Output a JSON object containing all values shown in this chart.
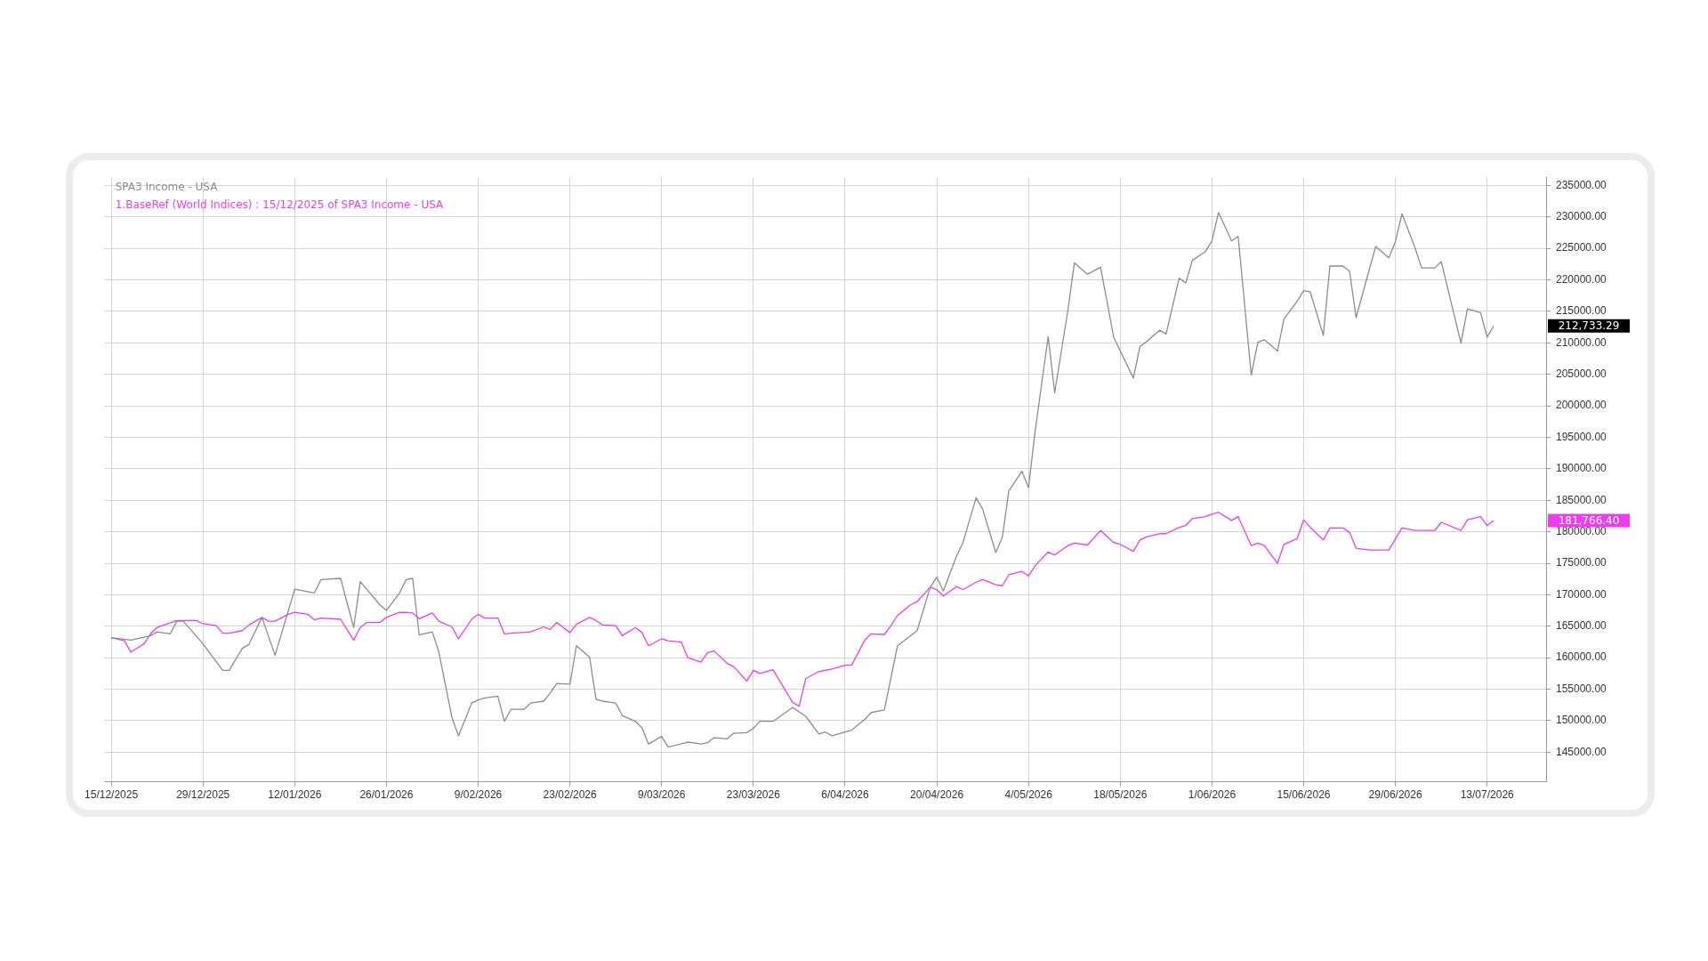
{
  "chart_data": {
    "type": "line",
    "legend": "top left",
    "grid": true,
    "marker": "none",
    "xlim": [
      "2025-12-14",
      "2026-07-22"
    ],
    "xticks": [
      {
        "value": "2025-12-15",
        "label": "15/12/2025"
      },
      {
        "value": "2025-12-29",
        "label": "29/12/2025"
      },
      {
        "value": "2026-01-12",
        "label": "12/01/2026"
      },
      {
        "value": "2026-01-26",
        "label": "26/01/2026"
      },
      {
        "value": "2026-02-09",
        "label": "9/02/2026"
      },
      {
        "value": "2026-02-23",
        "label": "23/02/2026"
      },
      {
        "value": "2026-03-09",
        "label": "9/03/2026"
      },
      {
        "value": "2026-03-23",
        "label": "23/03/2026"
      },
      {
        "value": "2026-04-06",
        "label": "6/04/2026"
      },
      {
        "value": "2026-04-20",
        "label": "20/04/2026"
      },
      {
        "value": "2026-05-04",
        "label": "4/05/2026"
      },
      {
        "value": "2026-05-18",
        "label": "18/05/2026"
      },
      {
        "value": "2026-06-01",
        "label": "1/06/2026"
      },
      {
        "value": "2026-06-15",
        "label": "15/06/2026"
      },
      {
        "value": "2026-06-29",
        "label": "29/06/2026"
      },
      {
        "value": "2026-07-13",
        "label": "13/07/2026"
      }
    ],
    "ylim": [
      140300,
      236300
    ],
    "yticks": [
      {
        "value": 145000,
        "label": "145000.00"
      },
      {
        "value": 150000,
        "label": "150000.00"
      },
      {
        "value": 155000,
        "label": "155000.00"
      },
      {
        "value": 160000,
        "label": "160000.00"
      },
      {
        "value": 165000,
        "label": "165000.00"
      },
      {
        "value": 170000,
        "label": "170000.00"
      },
      {
        "value": 175000,
        "label": "175000.00"
      },
      {
        "value": 180000,
        "label": "180000.00"
      },
      {
        "value": 185000,
        "label": "185000.00"
      },
      {
        "value": 190000,
        "label": "190000.00"
      },
      {
        "value": 195000,
        "label": "195000.00"
      },
      {
        "value": 200000,
        "label": "200000.00"
      },
      {
        "value": 205000,
        "label": "205000.00"
      },
      {
        "value": 210000,
        "label": "210000.00"
      },
      {
        "value": 215000,
        "label": "215000.00"
      },
      {
        "value": 220000,
        "label": "220000.00"
      },
      {
        "value": 225000,
        "label": "225000.00"
      },
      {
        "value": 230000,
        "label": "230000.00"
      },
      {
        "value": 235000,
        "label": "235000.00"
      }
    ],
    "annotations": [
      "212,733.29",
      "181,766.40"
    ],
    "series": [
      {
        "name": "SPA3 Income - USA",
        "color": "#8c8c8c",
        "x": [
          "2025-12-15",
          "2025-12-18",
          "2025-12-21",
          "2025-12-22",
          "2025-12-24",
          "2025-12-25",
          "2025-12-26",
          "2025-12-29",
          "2026-01-01",
          "2026-01-02",
          "2026-01-04",
          "2026-01-05",
          "2026-01-07",
          "2026-01-09",
          "2026-01-12",
          "2026-01-15",
          "2026-01-16",
          "2026-01-19",
          "2026-01-21",
          "2026-01-22",
          "2026-01-25",
          "2026-01-26",
          "2026-01-28",
          "2026-01-29",
          "2026-01-30",
          "2026-01-31",
          "2026-02-02",
          "2026-02-03",
          "2026-02-05",
          "2026-02-06",
          "2026-02-08",
          "2026-02-09",
          "2026-02-10",
          "2026-02-12",
          "2026-02-13",
          "2026-02-14",
          "2026-02-16",
          "2026-02-17",
          "2026-02-19",
          "2026-02-20",
          "2026-02-21",
          "2026-02-23",
          "2026-02-24",
          "2026-02-26",
          "2026-02-27",
          "2026-02-28",
          "2026-03-02",
          "2026-03-03",
          "2026-03-05",
          "2026-03-06",
          "2026-03-07",
          "2026-03-09",
          "2026-03-10",
          "2026-03-13",
          "2026-03-15",
          "2026-03-16",
          "2026-03-17",
          "2026-03-19",
          "2026-03-20",
          "2026-03-22",
          "2026-03-23",
          "2026-03-24",
          "2026-03-26",
          "2026-03-29",
          "2026-03-31",
          "2026-04-02",
          "2026-04-03",
          "2026-04-04",
          "2026-04-06",
          "2026-04-07",
          "2026-04-09",
          "2026-04-10",
          "2026-04-12",
          "2026-04-14",
          "2026-04-16",
          "2026-04-17",
          "2026-04-19",
          "2026-04-20",
          "2026-04-21",
          "2026-04-23",
          "2026-04-24",
          "2026-04-26",
          "2026-04-27",
          "2026-04-29",
          "2026-04-30",
          "2026-05-01",
          "2026-05-03",
          "2026-05-04",
          "2026-05-05",
          "2026-05-07",
          "2026-05-08",
          "2026-05-10",
          "2026-05-11",
          "2026-05-13",
          "2026-05-15",
          "2026-05-17",
          "2026-05-20",
          "2026-05-21",
          "2026-05-22",
          "2026-05-24",
          "2026-05-25",
          "2026-05-27",
          "2026-05-28",
          "2026-05-29",
          "2026-05-31",
          "2026-06-01",
          "2026-06-02",
          "2026-06-04",
          "2026-06-05",
          "2026-06-07",
          "2026-06-08",
          "2026-06-09",
          "2026-06-11",
          "2026-06-12",
          "2026-06-14",
          "2026-06-15",
          "2026-06-16",
          "2026-06-18",
          "2026-06-19",
          "2026-06-21",
          "2026-06-22",
          "2026-06-23",
          "2026-06-25",
          "2026-06-26",
          "2026-06-28",
          "2026-06-29",
          "2026-06-30",
          "2026-07-02",
          "2026-07-03",
          "2026-07-05",
          "2026-07-06",
          "2026-07-09",
          "2026-07-10",
          "2026-07-12",
          "2026-07-13",
          "2026-07-14"
        ],
        "values": [
          163200,
          162800,
          163500,
          164100,
          163800,
          165800,
          165800,
          162200,
          158000,
          158000,
          161500,
          162100,
          166400,
          160400,
          170900,
          170300,
          172400,
          172600,
          164800,
          172100,
          168400,
          167500,
          170300,
          172400,
          172600,
          163600,
          164100,
          160900,
          150500,
          147600,
          152800,
          153300,
          153600,
          153900,
          149900,
          151800,
          151800,
          152800,
          153100,
          154400,
          155900,
          155800,
          161900,
          160100,
          153400,
          153100,
          152800,
          150800,
          149900,
          148900,
          146300,
          147500,
          145800,
          146600,
          146300,
          146500,
          147300,
          147100,
          148000,
          148100,
          148800,
          149900,
          149900,
          152100,
          150700,
          147900,
          148200,
          147600,
          148200,
          148500,
          150200,
          151300,
          151700,
          161900,
          163500,
          164300,
          171200,
          172800,
          170600,
          176100,
          178300,
          185400,
          183600,
          176700,
          179100,
          186500,
          189600,
          187000,
          195900,
          211000,
          202100,
          215100,
          222700,
          220900,
          222000,
          210900,
          204400,
          209400,
          210200,
          212000,
          211400,
          220300,
          219500,
          223100,
          224500,
          226200,
          230700,
          226200,
          226900,
          204900,
          210100,
          210500,
          208700,
          213800,
          216600,
          218300,
          218100,
          211200,
          222200,
          222200,
          221400,
          214000,
          221600,
          225300,
          223500,
          226100,
          230500,
          225100,
          221900,
          221900,
          222900,
          210000,
          215400,
          214800,
          210900,
          212700
        ]
      },
      {
        "name": "1.BaseRef (World Indices) : 15/12/2025 of SPA3 Income - USA",
        "color": "#f03cf0",
        "x": [
          "2025-12-15",
          "2025-12-17",
          "2025-12-18",
          "2025-12-20",
          "2025-12-21",
          "2025-12-22",
          "2025-12-25",
          "2025-12-28",
          "2025-12-29",
          "2025-12-31",
          "2026-01-01",
          "2026-01-02",
          "2026-01-04",
          "2026-01-05",
          "2026-01-07",
          "2026-01-08",
          "2026-01-09",
          "2026-01-11",
          "2026-01-12",
          "2026-01-14",
          "2026-01-15",
          "2026-01-16",
          "2026-01-19",
          "2026-01-21",
          "2026-01-22",
          "2026-01-23",
          "2026-01-25",
          "2026-01-26",
          "2026-01-28",
          "2026-01-29",
          "2026-01-30",
          "2026-01-31",
          "2026-02-02",
          "2026-02-03",
          "2026-02-05",
          "2026-02-06",
          "2026-02-08",
          "2026-02-09",
          "2026-02-10",
          "2026-02-12",
          "2026-02-13",
          "2026-02-14",
          "2026-02-17",
          "2026-02-19",
          "2026-02-20",
          "2026-02-21",
          "2026-02-23",
          "2026-02-24",
          "2026-02-26",
          "2026-02-27",
          "2026-02-28",
          "2026-03-02",
          "2026-03-03",
          "2026-03-05",
          "2026-03-06",
          "2026-03-07",
          "2026-03-09",
          "2026-03-10",
          "2026-03-12",
          "2026-03-13",
          "2026-03-15",
          "2026-03-16",
          "2026-03-17",
          "2026-03-19",
          "2026-03-20",
          "2026-03-22",
          "2026-03-23",
          "2026-03-24",
          "2026-03-26",
          "2026-03-29",
          "2026-03-30",
          "2026-03-31",
          "2026-04-02",
          "2026-04-04",
          "2026-04-06",
          "2026-04-07",
          "2026-04-09",
          "2026-04-10",
          "2026-04-12",
          "2026-04-13",
          "2026-04-14",
          "2026-04-16",
          "2026-04-17",
          "2026-04-19",
          "2026-04-20",
          "2026-04-21",
          "2026-04-23",
          "2026-04-24",
          "2026-04-26",
          "2026-04-27",
          "2026-04-29",
          "2026-04-30",
          "2026-05-01",
          "2026-05-03",
          "2026-05-04",
          "2026-05-05",
          "2026-05-07",
          "2026-05-08",
          "2026-05-10",
          "2026-05-11",
          "2026-05-13",
          "2026-05-15",
          "2026-05-17",
          "2026-05-18",
          "2026-05-20",
          "2026-05-21",
          "2026-05-22",
          "2026-05-24",
          "2026-05-25",
          "2026-05-27",
          "2026-05-28",
          "2026-05-29",
          "2026-05-31",
          "2026-06-01",
          "2026-06-02",
          "2026-06-04",
          "2026-06-05",
          "2026-06-07",
          "2026-06-08",
          "2026-06-09",
          "2026-06-11",
          "2026-06-12",
          "2026-06-14",
          "2026-06-15",
          "2026-06-16",
          "2026-06-18",
          "2026-06-19",
          "2026-06-21",
          "2026-06-22",
          "2026-06-23",
          "2026-06-25",
          "2026-06-28",
          "2026-06-30",
          "2026-07-02",
          "2026-07-05",
          "2026-07-06",
          "2026-07-09",
          "2026-07-10",
          "2026-07-12",
          "2026-07-13",
          "2026-07-14"
        ],
        "values": [
          163200,
          162700,
          160900,
          162200,
          163800,
          164800,
          165900,
          165900,
          165400,
          165100,
          163900,
          163900,
          164300,
          165200,
          166400,
          165800,
          165800,
          166900,
          167200,
          166900,
          166000,
          166300,
          166100,
          162800,
          164800,
          165600,
          165600,
          166400,
          167200,
          167200,
          167100,
          166200,
          167100,
          165800,
          164900,
          163000,
          166100,
          166900,
          166300,
          166300,
          163800,
          163900,
          164100,
          164900,
          164500,
          165600,
          164000,
          165300,
          166400,
          165900,
          165200,
          165100,
          163500,
          164800,
          164000,
          161900,
          163000,
          162700,
          162500,
          160000,
          159300,
          160800,
          161100,
          159100,
          158600,
          156300,
          158000,
          157500,
          158100,
          152900,
          152300,
          156700,
          157800,
          158200,
          158800,
          158800,
          162800,
          163800,
          163700,
          165100,
          166700,
          168400,
          168900,
          171200,
          170800,
          169800,
          171300,
          170800,
          172000,
          172400,
          171600,
          171400,
          173200,
          173700,
          173000,
          174600,
          176800,
          176300,
          177800,
          178200,
          177900,
          180200,
          178300,
          178000,
          176900,
          178700,
          179200,
          179700,
          179700,
          180700,
          181000,
          182100,
          182400,
          182800,
          183100,
          181800,
          182400,
          177800,
          178200,
          177800,
          175000,
          178000,
          178900,
          181900,
          180700,
          178700,
          180600,
          180600,
          179900,
          177400,
          177100,
          177100,
          180600,
          180200,
          180200,
          181500,
          180200,
          181900,
          182400,
          181000,
          181800
        ]
      }
    ]
  }
}
